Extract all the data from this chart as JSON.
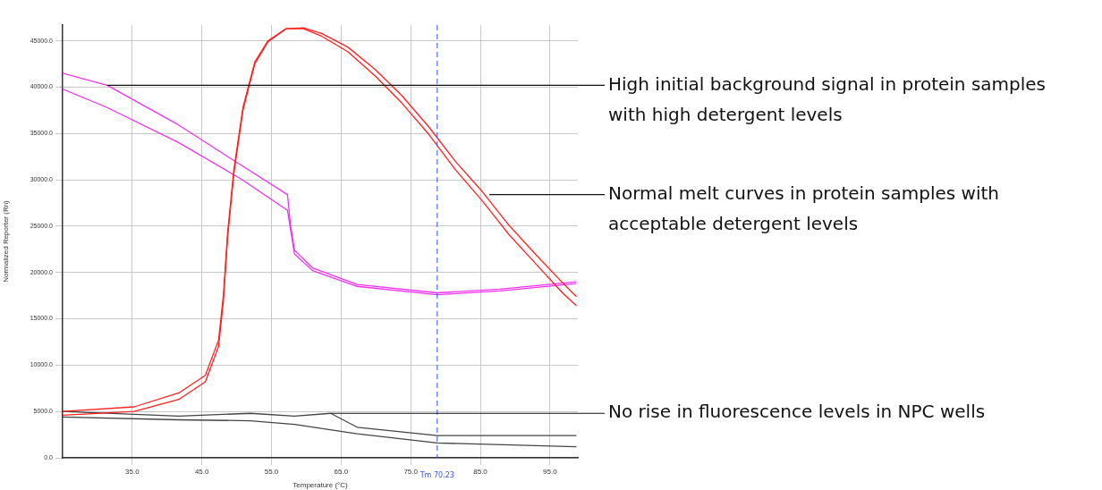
{
  "chart_data": {
    "type": "line",
    "xlabel": "Temperature (°C)",
    "ylabel": "Normalized Reporter (Rn)",
    "xlim": [
      25,
      99
    ],
    "ylim": [
      0,
      46700
    ],
    "xticks": [
      {
        "value": 35,
        "label": "35.0"
      },
      {
        "value": 45,
        "label": "45.0"
      },
      {
        "value": 55,
        "label": "55.0"
      },
      {
        "value": 65,
        "label": "65.0"
      },
      {
        "value": 75,
        "label": "75.0"
      },
      {
        "value": 85,
        "label": "85.0"
      },
      {
        "value": 95,
        "label": "95.0"
      }
    ],
    "yticks": [
      {
        "value": 0,
        "label": "0.0"
      },
      {
        "value": 5000,
        "label": "5000.0"
      },
      {
        "value": 10000,
        "label": "10000.0"
      },
      {
        "value": 15000,
        "label": "15000.0"
      },
      {
        "value": 20000,
        "label": "20000.0"
      },
      {
        "value": 25000,
        "label": "25000.0"
      },
      {
        "value": 30000,
        "label": "30000.0"
      },
      {
        "value": 35000,
        "label": "35000.0"
      },
      {
        "value": 40000,
        "label": "40000.0"
      },
      {
        "value": 45000,
        "label": "45000.0"
      }
    ],
    "grid": true,
    "legend": false,
    "marker": "none",
    "line_style": "solid",
    "series": [
      {
        "color": "#ff2020",
        "x": [
          25,
          35.3,
          41.7,
          45.5,
          47.4,
          48.1,
          48.7,
          49.6,
          50.9,
          52.6,
          54.5,
          57.1,
          59.6,
          62.2,
          66.0,
          69.9,
          73.7,
          77.6,
          81.4,
          85.3,
          89.1,
          93.0,
          96.8,
          98.8
        ],
        "values": [
          5000,
          5500,
          7000,
          8900,
          12700,
          17600,
          24300,
          31100,
          37800,
          42700,
          45000,
          46300,
          46300,
          45500,
          43800,
          41200,
          38300,
          34900,
          31100,
          27700,
          24100,
          20900,
          17800,
          16400
        ]
      },
      {
        "color": "#ff2020",
        "x": [
          25,
          35.3,
          41.7,
          45.5,
          47.4,
          48.1,
          48.7,
          49.6,
          50.9,
          52.6,
          54.5,
          57.1,
          59.6,
          62.2,
          66.0,
          69.9,
          73.7,
          77.6,
          81.4,
          85.3,
          89.1,
          93.0,
          96.8,
          98.8
        ],
        "values": [
          4600,
          5000,
          6300,
          8200,
          12000,
          17000,
          23800,
          30700,
          37500,
          42500,
          44900,
          46300,
          46400,
          45800,
          44300,
          41900,
          39100,
          35700,
          32000,
          28700,
          25100,
          21900,
          18900,
          17400
        ]
      },
      {
        "color": "#ee33ee",
        "x": [
          25,
          31.4,
          41.7,
          50.6,
          57.3,
          57.7,
          58.3,
          60.9,
          67.3,
          78.8,
          87.8,
          98.8
        ],
        "values": [
          41500,
          40200,
          35900,
          31600,
          28400,
          25300,
          22400,
          20500,
          18700,
          17800,
          18200,
          19000
        ]
      },
      {
        "color": "#ee33ee",
        "x": [
          25,
          31.4,
          41.7,
          50.6,
          57.3,
          57.7,
          58.3,
          60.9,
          67.3,
          78.8,
          87.8,
          98.8
        ],
        "values": [
          39800,
          37800,
          34000,
          30100,
          26700,
          24800,
          22000,
          20200,
          18500,
          17600,
          18000,
          18800
        ]
      },
      {
        "color": "#444444",
        "x": [
          25,
          41.7,
          52.0,
          58.3,
          63.5,
          67.3,
          78.8,
          98.8
        ],
        "values": [
          5000,
          4500,
          4800,
          4500,
          4800,
          3300,
          2400,
          2400
        ]
      },
      {
        "color": "#444444",
        "x": [
          25,
          41.7,
          52.0,
          58.3,
          67.3,
          78.8,
          98.8
        ],
        "values": [
          4400,
          4100,
          4000,
          3600,
          2600,
          1600,
          1200
        ]
      }
    ],
    "ref_lines": [
      {
        "axis": "x",
        "value": 78.8,
        "label": "Tm 70.23",
        "color": "#3355ff",
        "line_style": "dashed"
      }
    ],
    "annotations": [
      {
        "text": "High initial background signal in protein samples with high detergent levels",
        "x": 31.4,
        "y": 40200
      },
      {
        "text": "Normal melt curves in protein samples with acceptable detergent levels",
        "x": 86.3,
        "y": 28400
      },
      {
        "text": "No rise in fluorescence levels in NPC wells",
        "x": 63.5,
        "y": 4800
      }
    ]
  }
}
